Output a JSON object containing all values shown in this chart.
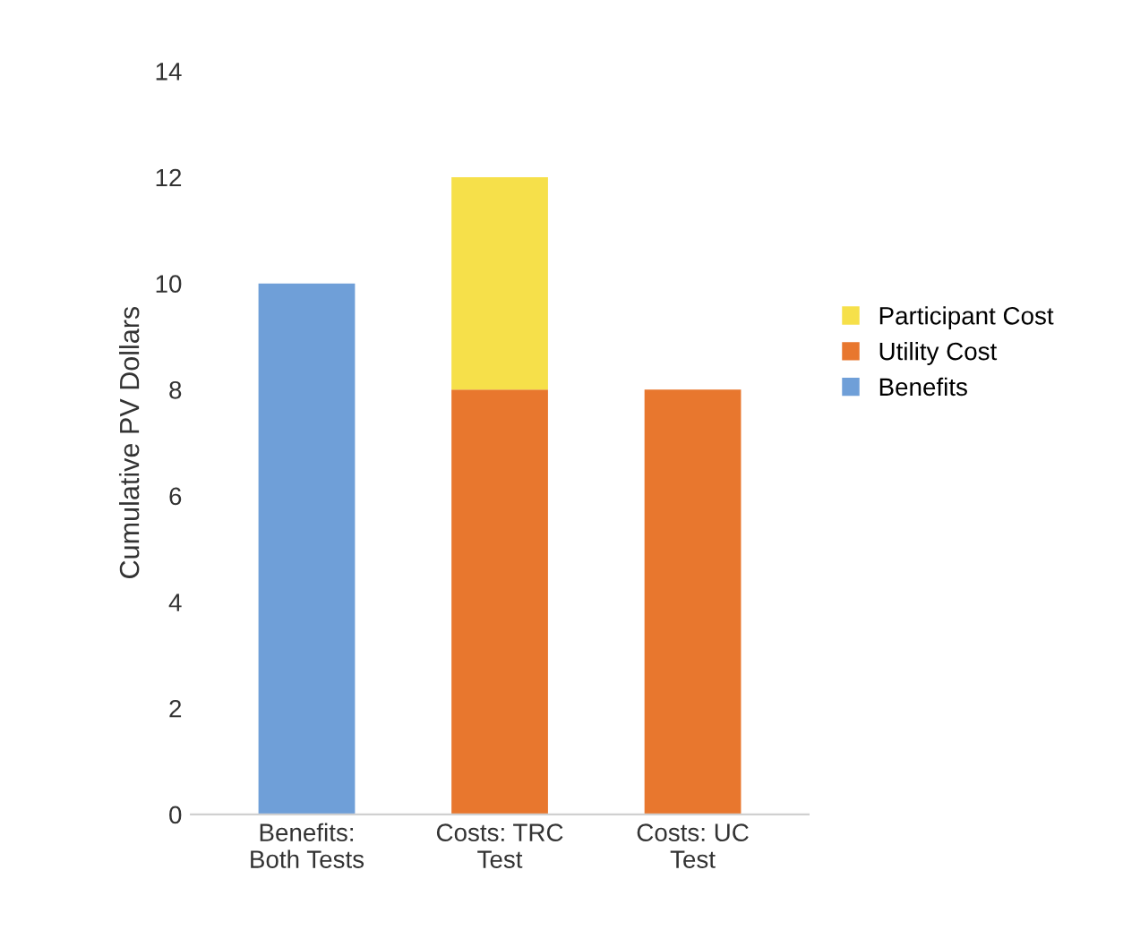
{
  "chart_data": {
    "type": "bar",
    "stacked": true,
    "ylabel": "Cumulative PV Dollars",
    "categories": [
      "Benefits:\nBoth Tests",
      "Costs: TRC\nTest",
      "Costs: UC\nTest"
    ],
    "series": [
      {
        "name": "Benefits",
        "color": "#6f9fd8",
        "values": [
          10,
          null,
          null
        ]
      },
      {
        "name": "Utility Cost",
        "color": "#e8772e",
        "values": [
          null,
          8,
          8
        ]
      },
      {
        "name": "Participant Cost",
        "color": "#f6e04a",
        "values": [
          null,
          4,
          null
        ]
      }
    ],
    "ylim": [
      0,
      14
    ],
    "yticks": [
      0,
      2,
      4,
      6,
      8,
      10,
      12,
      14
    ],
    "legend": "right"
  }
}
